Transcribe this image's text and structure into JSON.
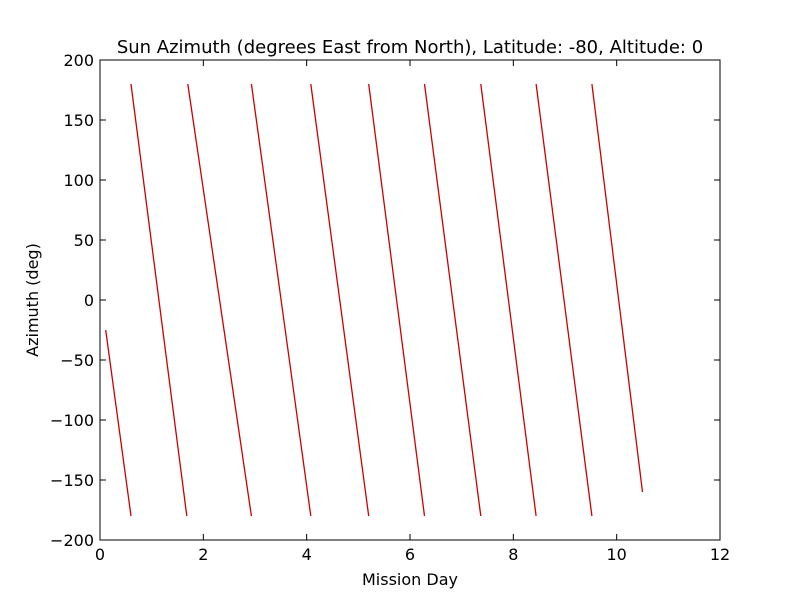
{
  "chart_data": {
    "type": "line",
    "title": "Sun Azimuth (degrees East from North), Latitude: -80, Altitude: 0",
    "xlabel": "Mission Day",
    "ylabel": "Azimuth (deg)",
    "xlim": [
      0,
      12
    ],
    "ylim": [
      -200,
      200
    ],
    "xticks": [
      0,
      2,
      4,
      6,
      8,
      10,
      12
    ],
    "yticks": [
      -200,
      -150,
      -100,
      -50,
      0,
      50,
      100,
      150,
      200
    ],
    "grid": false,
    "color": "#cc0000",
    "segments": [
      {
        "x": [
          0.11,
          0.6
        ],
        "y": [
          -25,
          -180
        ]
      },
      {
        "x": [
          0.6,
          1.68
        ],
        "y": [
          180,
          -180
        ]
      },
      {
        "x": [
          1.7,
          2.93
        ],
        "y": [
          180,
          -180
        ]
      },
      {
        "x": [
          2.93,
          4.08
        ],
        "y": [
          180,
          -180
        ]
      },
      {
        "x": [
          4.08,
          5.2
        ],
        "y": [
          180,
          -180
        ]
      },
      {
        "x": [
          5.2,
          6.28
        ],
        "y": [
          180,
          -180
        ]
      },
      {
        "x": [
          6.28,
          7.37
        ],
        "y": [
          180,
          -180
        ]
      },
      {
        "x": [
          7.37,
          8.44
        ],
        "y": [
          180,
          -180
        ]
      },
      {
        "x": [
          8.44,
          9.52
        ],
        "y": [
          180,
          -180
        ]
      },
      {
        "x": [
          9.52,
          10.5
        ],
        "y": [
          180,
          -160
        ]
      }
    ]
  }
}
